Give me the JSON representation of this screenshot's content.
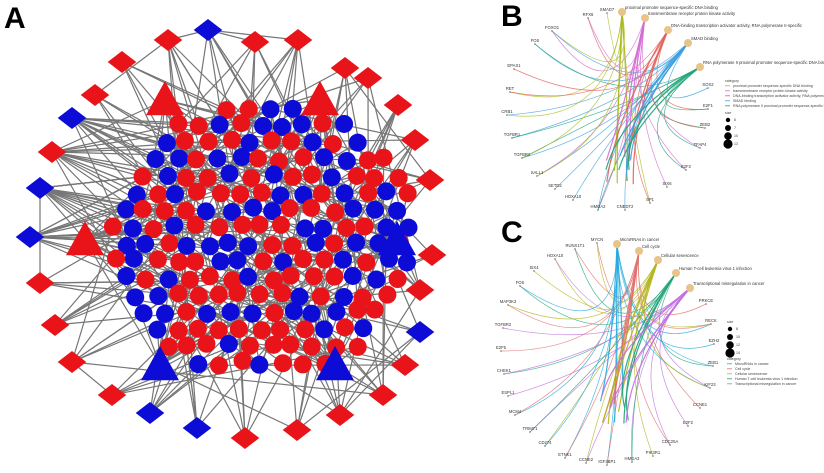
{
  "panels": {
    "a": {
      "letter": "A"
    },
    "b": {
      "letter": "B",
      "terms": [
        {
          "label": "proximal promoter sequence-specific DNA binding",
          "color": "#a9bb1c"
        },
        {
          "label": "transmembrane receptor protein kinase activity",
          "color": "#d46ad4"
        },
        {
          "label": "DNA-binding transcription activator activity, RNA polymerase II-specific",
          "color": "#e0605a"
        },
        {
          "label": "SMAD binding",
          "color": "#3a9fe0"
        },
        {
          "label": "RNA polymerase II proximal promoter sequence-specific DNA binding",
          "color": "#1fa378"
        }
      ],
      "genes": [
        "RFX6",
        "SMAD7",
        "FOXO1",
        "FOS",
        "EPAS1",
        "RET",
        "CRB1",
        "TGFBR1",
        "TGFBR2",
        "SALL1",
        "SETD2",
        "HOXA10",
        "HMGA2",
        "CNEDT2",
        "SP1",
        "SIX6",
        "E2F2",
        "TFAP4",
        "ZEB2",
        "E2F1",
        "SOX2"
      ],
      "legend": {
        "category_title": "category",
        "size_title": "size",
        "sizes": [
          "6",
          "7",
          "10",
          "13"
        ]
      }
    },
    "c": {
      "letter": "C",
      "terms": [
        {
          "label": "MicroRNAs in cancer",
          "color": "#25a9e0"
        },
        {
          "label": "Cell cycle",
          "color": "#e0706c"
        },
        {
          "label": "Cellular senescence",
          "color": "#b4b41e"
        },
        {
          "label": "Human T-cell leukemia virus 1 infection",
          "color": "#1fa378"
        },
        {
          "label": "Transcriptional misregulation in cancer",
          "color": "#c06ee0"
        }
      ],
      "genes": [
        "RUNX1T1",
        "MYCN",
        "HOXA10",
        "SIX4",
        "FOS",
        "MAP3K3",
        "TGFBR2",
        "E2F5",
        "CHEK1",
        "ESPL1",
        "MCM4",
        "TRIM71",
        "CD274",
        "ETNK1",
        "CCNE2",
        "IGF2BP1",
        "HMGA2",
        "PIK3R1",
        "CDC25A",
        "E2F2",
        "CCNE1",
        "KIF23",
        "ZEB1",
        "EZH2",
        "RECK",
        "PRKCE"
      ],
      "legend": {
        "size_title": "size",
        "sizes": [
          "8",
          "10",
          "12",
          "14"
        ],
        "category_title": "category"
      }
    }
  },
  "colors": {
    "up": "#e8141a",
    "down": "#0c0cd6",
    "edge": "#767676",
    "term_node": "#e8c48a"
  }
}
